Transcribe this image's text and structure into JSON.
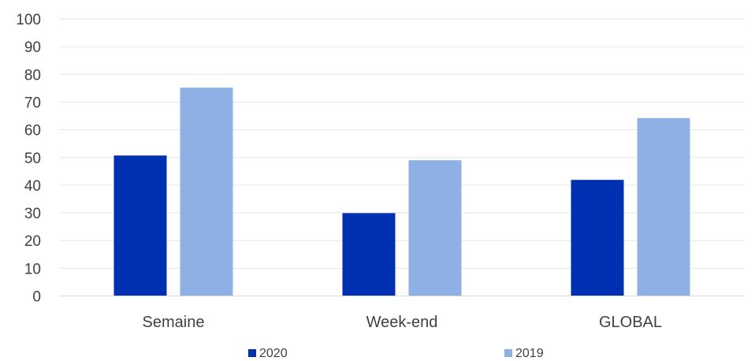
{
  "chart_data": {
    "type": "bar",
    "categories": [
      "Semaine",
      "Week-end",
      "GLOBAL"
    ],
    "series": [
      {
        "name": "2020",
        "values": [
          50.7,
          29.9,
          41.9
        ],
        "color": "#0030b2"
      },
      {
        "name": "2019",
        "values": [
          75.2,
          49.0,
          64.2
        ],
        "color": "#8eb0e4"
      }
    ],
    "ylim": [
      0,
      100
    ],
    "yticks": [
      "0",
      "10",
      "20",
      "30",
      "40",
      "50",
      "60",
      "70",
      "80",
      "90",
      "100"
    ],
    "grid": true,
    "legend": "bottom",
    "gridline_color": "#e6e6e6",
    "axis_color": "#d9d9d9",
    "text_color": "#404040"
  }
}
